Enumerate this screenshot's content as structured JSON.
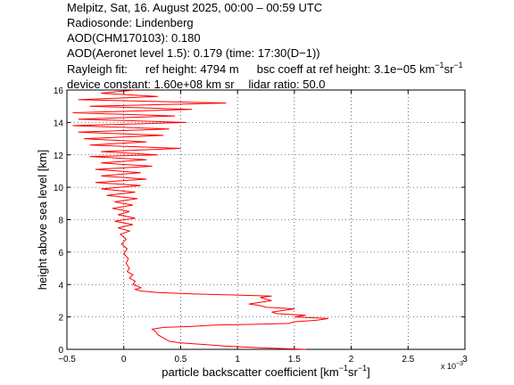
{
  "header": {
    "line1": "Melpitz, Sat, 16. August 2025, 00:00 – 00:59 UTC",
    "line2": "Radiosonde: Lindenberg",
    "line3": "AOD(CHM170103): 0.180",
    "line4": "AOD(Aeronet level 1.5): 0.179   (time: 17:30(D−1))",
    "rayleigh_label": "Rayleigh fit:",
    "ref_height": "ref height: 4794 m",
    "bsc_coeff_prefix": "bsc coeff at ref height: 3.1e−05 km",
    "sup_minus1": "−1",
    "sr_text": "sr",
    "device_constant": "device constant: 1.60e+08 km sr",
    "lidar_ratio": "lidar ratio: 50.0"
  },
  "chart_data": {
    "type": "line",
    "xlabel_prefix": "particle backscatter coefficient [km",
    "xlabel_sr": "sr",
    "xlabel_end": "]",
    "sup_minus1": "−1",
    "ylabel": "height above sea level [km]",
    "x_multiplier_label": "x 10",
    "x_multiplier_exp": "−3",
    "xlim": [
      -0.5,
      3
    ],
    "ylim": [
      0,
      16
    ],
    "xticks": [
      -0.5,
      0,
      0.5,
      1,
      1.5,
      2,
      2.5,
      3
    ],
    "xtick_labels": [
      "−0.5",
      "0",
      "0.5",
      "1",
      "1.5",
      "2",
      "2.5",
      "3"
    ],
    "yticks": [
      0,
      2,
      4,
      6,
      8,
      10,
      12,
      14,
      16
    ],
    "ytick_labels": [
      "0",
      "2",
      "4",
      "6",
      "8",
      "10",
      "12",
      "14",
      "16"
    ],
    "grid": true,
    "series": [
      {
        "color": "#ff0000",
        "points": [
          [
            1.6,
            0.0
          ],
          [
            1.2,
            0.1
          ],
          [
            0.9,
            0.2
          ],
          [
            0.7,
            0.3
          ],
          [
            0.5,
            0.4
          ],
          [
            0.4,
            0.5
          ],
          [
            0.35,
            0.7
          ],
          [
            0.3,
            0.9
          ],
          [
            0.28,
            1.1
          ],
          [
            0.25,
            1.25
          ],
          [
            0.35,
            1.35
          ],
          [
            0.6,
            1.42
          ],
          [
            0.8,
            1.5
          ],
          [
            1.2,
            1.55
          ],
          [
            1.45,
            1.6
          ],
          [
            1.5,
            1.7
          ],
          [
            1.7,
            1.8
          ],
          [
            1.8,
            1.9
          ],
          [
            1.5,
            2.0
          ],
          [
            1.6,
            2.1
          ],
          [
            1.35,
            2.2
          ],
          [
            1.3,
            2.3
          ],
          [
            1.4,
            2.4
          ],
          [
            1.5,
            2.5
          ],
          [
            1.25,
            2.6
          ],
          [
            1.2,
            2.7
          ],
          [
            1.1,
            2.8
          ],
          [
            1.2,
            2.9
          ],
          [
            1.3,
            3.0
          ],
          [
            1.25,
            3.1
          ],
          [
            1.2,
            3.2
          ],
          [
            1.3,
            3.28
          ],
          [
            1.0,
            3.35
          ],
          [
            0.6,
            3.42
          ],
          [
            0.3,
            3.5
          ],
          [
            0.15,
            3.6
          ],
          [
            0.1,
            3.7
          ],
          [
            0.15,
            3.8
          ],
          [
            0.12,
            3.9
          ],
          [
            0.08,
            4.0
          ],
          [
            0.1,
            4.2
          ],
          [
            0.05,
            4.4
          ],
          [
            0.08,
            4.6
          ],
          [
            0.03,
            4.8
          ],
          [
            0.05,
            5.0
          ],
          [
            0.02,
            5.3
          ],
          [
            0.04,
            5.6
          ],
          [
            0.0,
            5.9
          ],
          [
            0.03,
            6.2
          ],
          [
            -0.02,
            6.5
          ],
          [
            0.02,
            6.8
          ],
          [
            -0.03,
            7.1
          ],
          [
            0.05,
            7.3
          ],
          [
            -0.05,
            7.5
          ],
          [
            0.08,
            7.7
          ],
          [
            -0.08,
            7.9
          ],
          [
            0.1,
            8.1
          ],
          [
            -0.05,
            8.3
          ],
          [
            0.05,
            8.5
          ],
          [
            -0.1,
            8.7
          ],
          [
            0.08,
            8.9
          ],
          [
            -0.08,
            9.1
          ],
          [
            0.12,
            9.3
          ],
          [
            -0.15,
            9.5
          ],
          [
            0.1,
            9.7
          ],
          [
            -0.2,
            9.9
          ],
          [
            0.15,
            10.1
          ],
          [
            -0.25,
            10.3
          ],
          [
            0.2,
            10.5
          ],
          [
            -0.2,
            10.7
          ],
          [
            0.15,
            10.9
          ],
          [
            -0.25,
            11.1
          ],
          [
            0.25,
            11.3
          ],
          [
            -0.2,
            11.5
          ],
          [
            0.2,
            11.7
          ],
          [
            -0.3,
            11.9
          ],
          [
            0.3,
            12.0
          ],
          [
            -0.2,
            12.2
          ],
          [
            0.5,
            12.4
          ],
          [
            -0.3,
            12.6
          ],
          [
            0.2,
            12.8
          ],
          [
            -0.35,
            13.0
          ],
          [
            0.35,
            13.2
          ],
          [
            -0.4,
            13.4
          ],
          [
            0.4,
            13.6
          ],
          [
            -0.45,
            13.8
          ],
          [
            0.55,
            14.0
          ],
          [
            -0.4,
            14.2
          ],
          [
            0.45,
            14.4
          ],
          [
            -0.45,
            14.6
          ],
          [
            0.6,
            14.8
          ],
          [
            -0.3,
            15.0
          ],
          [
            0.9,
            15.2
          ],
          [
            -0.4,
            15.4
          ],
          [
            0.3,
            15.6
          ],
          [
            -0.2,
            15.8
          ],
          [
            0.1,
            16.0
          ]
        ]
      }
    ]
  }
}
